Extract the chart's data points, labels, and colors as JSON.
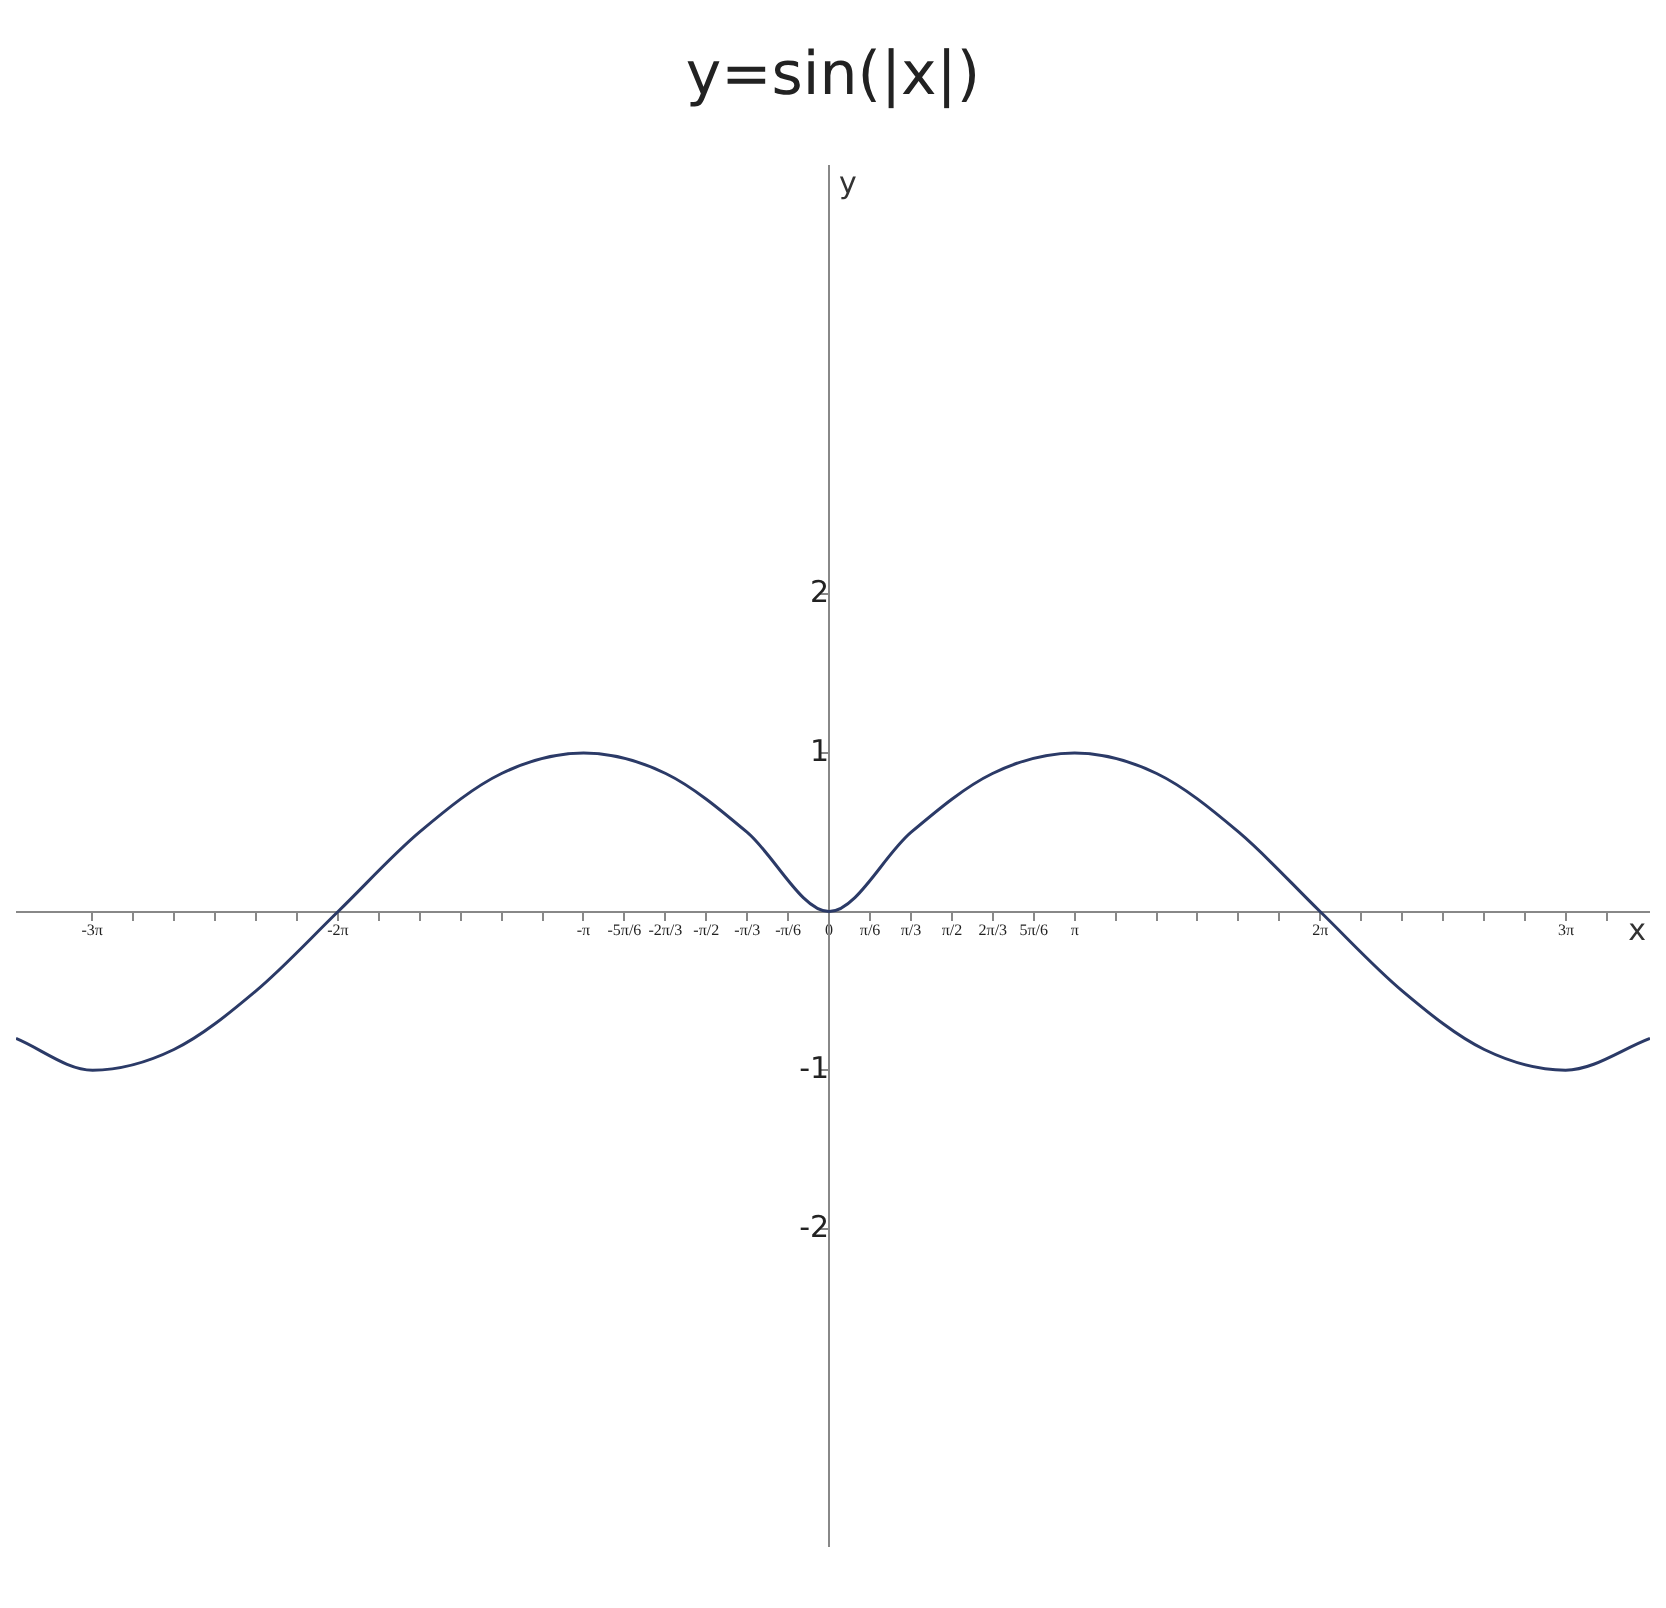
{
  "chart_data": {
    "type": "line",
    "title": "y=sin(|x|)",
    "xlabel": "x",
    "ylabel": "y",
    "x": [
      -10.4,
      -9.42,
      -8.38,
      -7.33,
      -6.28,
      -5.24,
      -4.19,
      -3.14,
      -2.09,
      -1.05,
      0,
      1.05,
      2.09,
      3.14,
      4.19,
      5.24,
      6.28,
      7.33,
      8.38,
      9.42,
      10.5
    ],
    "series": [
      {
        "color": "#2b3a67",
        "values": [
          -0.8,
          -1,
          -0.87,
          -0.5,
          0,
          0.5,
          0.87,
          1,
          0.87,
          0.5,
          0,
          0.5,
          0.87,
          1,
          0.87,
          0.5,
          0,
          -0.5,
          -0.87,
          -1,
          -0.8
        ]
      }
    ],
    "xlim": [
      -10.4,
      10.5
    ],
    "xticks": [
      {
        "value": -9.425,
        "label": "-3π"
      },
      {
        "value": -8.901,
        "label": null
      },
      {
        "value": -8.378,
        "label": null
      },
      {
        "value": -7.854,
        "label": null
      },
      {
        "value": -7.33,
        "label": null
      },
      {
        "value": -6.807,
        "label": null
      },
      {
        "value": -6.283,
        "label": "-2π"
      },
      {
        "value": -5.76,
        "label": null
      },
      {
        "value": -5.236,
        "label": null
      },
      {
        "value": -4.712,
        "label": null
      },
      {
        "value": -4.189,
        "label": null
      },
      {
        "value": -3.665,
        "label": null
      },
      {
        "value": -3.142,
        "label": "-π"
      },
      {
        "value": -2.618,
        "label": "-5π/6"
      },
      {
        "value": -2.094,
        "label": "-2π/3"
      },
      {
        "value": -1.571,
        "label": "-π/2"
      },
      {
        "value": -1.047,
        "label": "-π/3"
      },
      {
        "value": -0.524,
        "label": "-π/6"
      },
      {
        "value": 0,
        "label": "0"
      },
      {
        "value": 0.524,
        "label": "π/6"
      },
      {
        "value": 1.047,
        "label": "π/3"
      },
      {
        "value": 1.571,
        "label": "π/2"
      },
      {
        "value": 2.094,
        "label": "2π/3"
      },
      {
        "value": 2.618,
        "label": "5π/6"
      },
      {
        "value": 3.142,
        "label": "π"
      },
      {
        "value": 3.665,
        "label": null
      },
      {
        "value": 4.189,
        "label": null
      },
      {
        "value": 4.712,
        "label": null
      },
      {
        "value": 5.236,
        "label": null
      },
      {
        "value": 5.76,
        "label": null
      },
      {
        "value": 6.283,
        "label": "2π"
      },
      {
        "value": 6.807,
        "label": null
      },
      {
        "value": 7.33,
        "label": null
      },
      {
        "value": 7.854,
        "label": null
      },
      {
        "value": 8.378,
        "label": null
      },
      {
        "value": 8.901,
        "label": null
      },
      {
        "value": 9.425,
        "label": "3π"
      },
      {
        "value": 9.948,
        "label": null
      }
    ],
    "ylim": [
      -4,
      4.7
    ],
    "yticks": [
      -2,
      -1,
      1,
      2
    ],
    "grid": false,
    "legend": false,
    "marker": "none",
    "line_style": "solid"
  }
}
